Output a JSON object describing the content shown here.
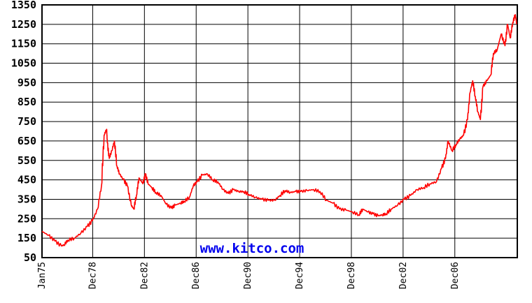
{
  "chart_data": {
    "type": "line",
    "title": "",
    "xlabel": "",
    "ylabel": "",
    "ylim": [
      50,
      1350
    ],
    "xlim": [
      "1975-01",
      "2011-09"
    ],
    "y_ticks": [
      50,
      150,
      250,
      350,
      450,
      550,
      650,
      750,
      850,
      950,
      1050,
      1150,
      1250,
      1350
    ],
    "x_ticks": [
      {
        "label": "Jan75",
        "date": 1975.0
      },
      {
        "label": "Dec78",
        "date": 1978.92
      },
      {
        "label": "Dec82",
        "date": 1982.92
      },
      {
        "label": "Dec86",
        "date": 1986.92
      },
      {
        "label": "Dec90",
        "date": 1990.92
      },
      {
        "label": "Dec94",
        "date": 1994.92
      },
      {
        "label": "Dec98",
        "date": 1998.92
      },
      {
        "label": "Dec02",
        "date": 2002.92
      },
      {
        "label": "Dec06",
        "date": 2006.92
      }
    ],
    "grid": true,
    "line_color": "#ff0000",
    "watermark": "www.kitco.com",
    "series": [
      {
        "x": [
          1975.0,
          1975.5,
          1976.0,
          1976.5,
          1976.7,
          1977.0,
          1977.5,
          1978.0,
          1978.5,
          1978.9,
          1979.3,
          1979.6,
          1979.8,
          1980.0,
          1980.05,
          1980.2,
          1980.4,
          1980.6,
          1980.8,
          1981.0,
          1981.3,
          1981.6,
          1981.9,
          1982.1,
          1982.3,
          1982.5,
          1982.8,
          1983.0,
          1983.2,
          1983.5,
          1983.8,
          1984.2,
          1984.6,
          1985.0,
          1985.3,
          1985.7,
          1986.0,
          1986.4,
          1986.7,
          1987.0,
          1987.4,
          1987.8,
          1988.2,
          1988.6,
          1989.0,
          1989.4,
          1989.8,
          1990.2,
          1990.6,
          1991.0,
          1991.5,
          1992.0,
          1992.5,
          1993.0,
          1993.4,
          1993.8,
          1994.2,
          1994.6,
          1995.0,
          1995.5,
          1996.0,
          1996.5,
          1997.0,
          1997.5,
          1998.0,
          1998.5,
          1999.0,
          1999.5,
          1999.8,
          2000.2,
          2000.6,
          2001.0,
          2001.3,
          2001.6,
          2002.0,
          2002.5,
          2003.0,
          2003.5,
          2004.0,
          2004.5,
          2005.0,
          2005.5,
          2005.9,
          2006.2,
          2006.4,
          2006.7,
          2007.0,
          2007.3,
          2007.6,
          2007.9,
          2008.1,
          2008.3,
          2008.5,
          2008.7,
          2008.9,
          2009.1,
          2009.4,
          2009.7,
          2009.9,
          2010.2,
          2010.5,
          2010.8,
          2011.0,
          2011.2,
          2011.4,
          2011.6,
          2011.7
        ],
        "y": [
          185,
          165,
          135,
          110,
          115,
          140,
          150,
          175,
          210,
          240,
          300,
          420,
          680,
          710,
          640,
          560,
          600,
          650,
          520,
          480,
          450,
          420,
          320,
          300,
          370,
          460,
          430,
          480,
          430,
          410,
          385,
          370,
          325,
          305,
          320,
          330,
          340,
          360,
          420,
          440,
          475,
          480,
          450,
          440,
          400,
          380,
          400,
          390,
          390,
          375,
          360,
          350,
          345,
          345,
          370,
          395,
          385,
          390,
          390,
          395,
          400,
          390,
          345,
          330,
          300,
          295,
          285,
          270,
          300,
          285,
          275,
          265,
          270,
          275,
          300,
          320,
          350,
          370,
          400,
          410,
          430,
          440,
          510,
          560,
          650,
          600,
          630,
          660,
          680,
          760,
          900,
          960,
          880,
          800,
          760,
          930,
          960,
          990,
          1100,
          1120,
          1200,
          1140,
          1250,
          1180,
          1260,
          1300,
          1250
        ]
      }
    ]
  }
}
